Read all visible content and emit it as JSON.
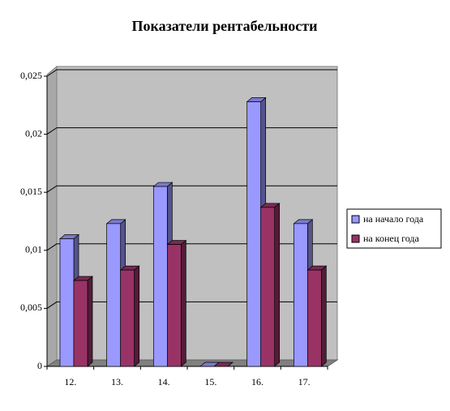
{
  "chart_data": {
    "type": "bar",
    "title": "Показатели рентабельности",
    "categories": [
      "12.",
      "13.",
      "14.",
      "15.",
      "16.",
      "17."
    ],
    "series": [
      {
        "name": "на начало года",
        "color": "#9999ff",
        "values": [
          0.011,
          0.0123,
          0.0155,
          0,
          0.0228,
          0.0123
        ]
      },
      {
        "name": "на конец года",
        "color": "#993366",
        "values": [
          0.0074,
          0.0083,
          0.0105,
          0,
          0.0137,
          0.0083
        ]
      }
    ],
    "ylim": [
      0,
      0.025
    ],
    "yticks": [
      0,
      {
        "value": 0.005,
        "label": "0,005"
      },
      {
        "value": 0.01,
        "label": "0,01"
      },
      {
        "value": 0.015,
        "label": "0,015"
      },
      {
        "value": 0.02,
        "label": "0,02"
      },
      {
        "value": 0.025,
        "label": "0,025"
      }
    ],
    "grid": true,
    "legend": "right"
  }
}
